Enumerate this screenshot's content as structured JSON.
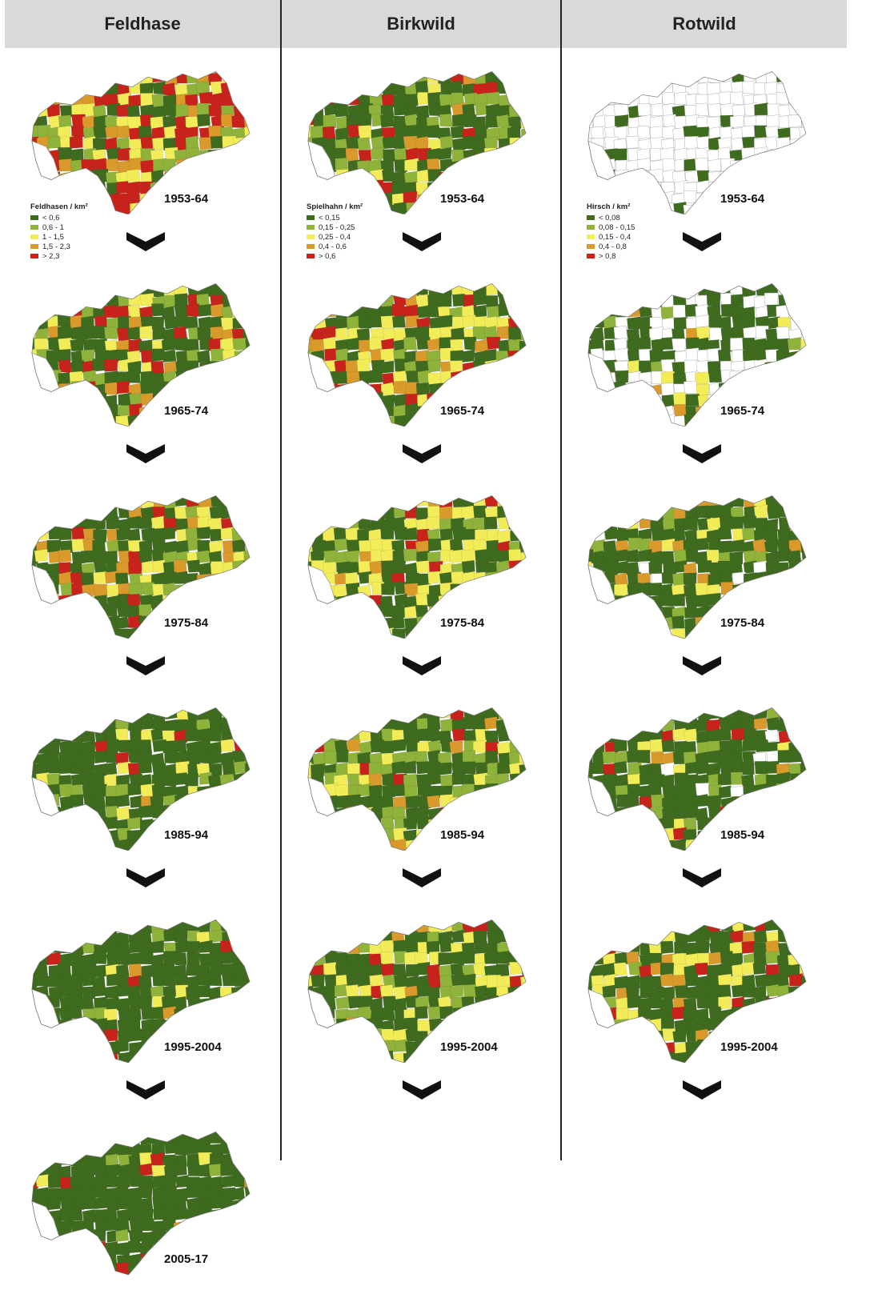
{
  "colors": {
    "class1": "#3e6b1e",
    "class2": "#8fb23a",
    "class3": "#f2ec58",
    "class4": "#d99a2b",
    "class5": "#c8231b",
    "nodata": "#ffffff",
    "outline": "#9a9a9a",
    "header_bg": "#d9d9d9"
  },
  "columns": [
    {
      "id": "feldhase",
      "title": "Feldhase",
      "legend": {
        "title": "Feldhasen / km²",
        "classes": [
          "< 0,6",
          "0,6 - 1",
          "1 - 1,5",
          "1,5 - 2,3",
          "> 2,3"
        ]
      },
      "periods": [
        "1953-64",
        "1965-74",
        "1975-84",
        "1985-94",
        "1995-2004",
        "2005-17"
      ],
      "class_mix": [
        [
          0.25,
          0.15,
          0.15,
          0.15,
          0.3
        ],
        [
          0.4,
          0.15,
          0.15,
          0.12,
          0.18
        ],
        [
          0.55,
          0.1,
          0.18,
          0.1,
          0.07
        ],
        [
          0.78,
          0.12,
          0.05,
          0.02,
          0.03
        ],
        [
          0.85,
          0.05,
          0.04,
          0.02,
          0.04
        ],
        [
          0.88,
          0.03,
          0.03,
          0.02,
          0.04
        ]
      ]
    },
    {
      "id": "birkwild",
      "title": "Birkwild",
      "legend": {
        "title": "Spielhahn / km²",
        "classes": [
          "< 0,15",
          "0,15 - 0,25",
          "0,25 - 0,4",
          "0,4 - 0,6",
          "> 0,6"
        ]
      },
      "periods": [
        "1953-64",
        "1965-74",
        "1975-84",
        "1985-94",
        "1995-2004"
      ],
      "class_mix": [
        [
          0.55,
          0.2,
          0.1,
          0.05,
          0.1
        ],
        [
          0.35,
          0.15,
          0.25,
          0.1,
          0.15
        ],
        [
          0.45,
          0.12,
          0.28,
          0.07,
          0.08
        ],
        [
          0.55,
          0.22,
          0.15,
          0.04,
          0.04
        ],
        [
          0.6,
          0.15,
          0.17,
          0.04,
          0.04
        ]
      ]
    },
    {
      "id": "rotwild",
      "title": "Rotwild",
      "legend": {
        "title": "Hirsch / km²",
        "classes": [
          "< 0,08",
          "0,08 - 0,15",
          "0,15 - 0,4",
          "0,4 - 0,8",
          "> 0,8"
        ]
      },
      "periods": [
        "1953-64",
        "1965-74",
        "1975-84",
        "1985-94",
        "1995-2004"
      ],
      "class_mix": [
        [
          0.12,
          0.0,
          0.0,
          0.0,
          0.0
        ],
        [
          0.4,
          0.06,
          0.08,
          0.04,
          0.0
        ],
        [
          0.65,
          0.08,
          0.08,
          0.12,
          0.0
        ],
        [
          0.7,
          0.1,
          0.08,
          0.04,
          0.05
        ],
        [
          0.6,
          0.07,
          0.2,
          0.06,
          0.07
        ]
      ]
    }
  ]
}
